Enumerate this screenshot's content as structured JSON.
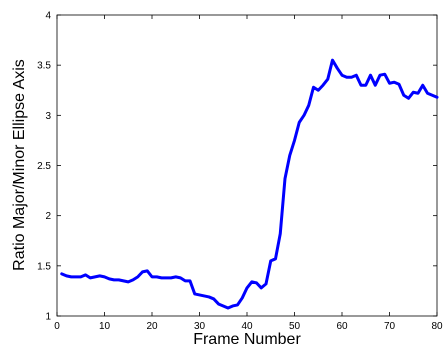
{
  "chart_data": {
    "type": "line",
    "title": "",
    "xlabel": "Frame Number",
    "ylabel": "Ratio Major/Minor Ellipse Axis",
    "xlim": [
      0,
      80
    ],
    "ylim": [
      1,
      4
    ],
    "xticks": [
      0,
      10,
      20,
      30,
      40,
      50,
      60,
      70,
      80
    ],
    "xtick_labels": [
      "0",
      "10",
      "20",
      "30",
      "40",
      "50",
      "60",
      "70",
      "80"
    ],
    "yticks": [
      1,
      1.5,
      2,
      2.5,
      3,
      3.5,
      4
    ],
    "ytick_labels": [
      "1",
      "1.5",
      "2",
      "2.5",
      "3",
      "3.5",
      "4"
    ],
    "grid": false,
    "line_color": "#0000ff",
    "series": [
      {
        "x": [
          1,
          2,
          3,
          4,
          5,
          6,
          7,
          8,
          9,
          10,
          11,
          12,
          13,
          14,
          15,
          16,
          17,
          18,
          19,
          20,
          21,
          22,
          23,
          24,
          25,
          26,
          27,
          28,
          29,
          30,
          31,
          32,
          33,
          34,
          35,
          36,
          37,
          38,
          39,
          40,
          41,
          42,
          43,
          44,
          45,
          46,
          47,
          48,
          49,
          50,
          51,
          52,
          53,
          54,
          55,
          56,
          57,
          58,
          59,
          60,
          61,
          62,
          63,
          64,
          65,
          66,
          67,
          68,
          69,
          70,
          71,
          72,
          73,
          74,
          75,
          76,
          77,
          78,
          79,
          80
        ],
        "y": [
          1.42,
          1.4,
          1.39,
          1.39,
          1.39,
          1.41,
          1.38,
          1.39,
          1.4,
          1.39,
          1.37,
          1.36,
          1.36,
          1.35,
          1.34,
          1.36,
          1.39,
          1.44,
          1.45,
          1.39,
          1.39,
          1.38,
          1.38,
          1.38,
          1.39,
          1.38,
          1.35,
          1.35,
          1.22,
          1.21,
          1.2,
          1.19,
          1.17,
          1.12,
          1.1,
          1.08,
          1.1,
          1.11,
          1.18,
          1.28,
          1.34,
          1.33,
          1.28,
          1.32,
          1.55,
          1.57,
          1.82,
          2.37,
          2.6,
          2.75,
          2.93,
          3.0,
          3.1,
          3.28,
          3.25,
          3.3,
          3.36,
          3.55,
          3.47,
          3.4,
          3.38,
          3.38,
          3.4,
          3.3,
          3.3,
          3.4,
          3.3,
          3.4,
          3.41,
          3.32,
          3.33,
          3.31,
          3.2,
          3.17,
          3.23,
          3.22,
          3.3,
          3.22,
          3.2,
          3.18
        ]
      }
    ]
  }
}
